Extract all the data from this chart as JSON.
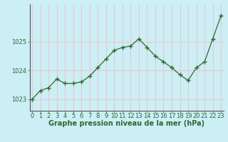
{
  "x": [
    0,
    1,
    2,
    3,
    4,
    5,
    6,
    7,
    8,
    9,
    10,
    11,
    12,
    13,
    14,
    15,
    16,
    17,
    18,
    19,
    20,
    21,
    22,
    23
  ],
  "y": [
    1023.0,
    1023.3,
    1023.4,
    1023.7,
    1023.55,
    1023.55,
    1023.6,
    1023.8,
    1024.1,
    1024.4,
    1024.7,
    1024.8,
    1024.85,
    1025.1,
    1024.8,
    1024.5,
    1024.3,
    1024.1,
    1023.85,
    1023.65,
    1024.1,
    1024.3,
    1025.1,
    1025.9
  ],
  "xlabel": "Graphe pression niveau de la mer (hPa)",
  "bg_color": "#cceef5",
  "grid_color": "#e8c8d0",
  "line_color": "#2d6a2d",
  "marker_color": "#2d6a2d",
  "tick_label_color": "#2d6a2d",
  "xlabel_color": "#2d6a2d",
  "xlabel_fontsize": 7,
  "tick_fontsize": 6,
  "ylim": [
    1022.6,
    1026.3
  ],
  "yticks": [
    1023,
    1024,
    1025
  ],
  "xticks": [
    0,
    1,
    2,
    3,
    4,
    5,
    6,
    7,
    8,
    9,
    10,
    11,
    12,
    13,
    14,
    15,
    16,
    17,
    18,
    19,
    20,
    21,
    22,
    23
  ]
}
